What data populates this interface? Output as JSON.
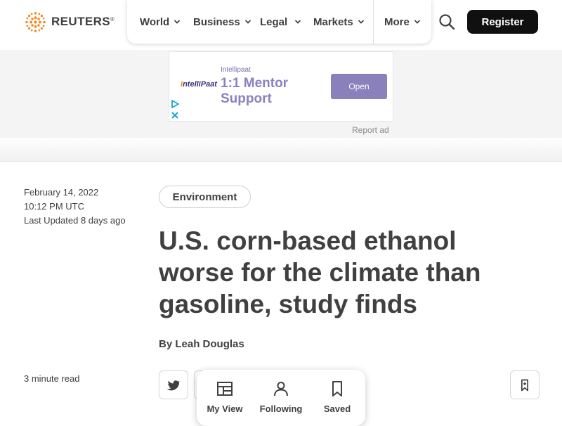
{
  "header": {
    "logo_text": "REUTERS",
    "logo_mark": "®",
    "nav": [
      {
        "label": "World",
        "icon": "chevron-down-icon"
      },
      {
        "label": "Business",
        "icon": "chevron-down-icon"
      },
      {
        "label": "Legal",
        "icon": "chevron-down-icon"
      },
      {
        "label": "Markets",
        "icon": "chevron-down-icon"
      },
      {
        "label": "More",
        "icon": "chevron-down-icon"
      }
    ],
    "search_icon": "search-icon",
    "register_label": "Register"
  },
  "ad": {
    "brand_logo": "IntelliPaat",
    "sponsor": "Intellipaat",
    "headline": "1:1 Mentor Support",
    "cta": "Open",
    "report_label": "Report ad"
  },
  "article": {
    "date": "February 14, 2022",
    "time": "10:12 PM UTC",
    "updated": "Last Updated 8 days ago",
    "tag": "Environment",
    "title": "U.S. corn-based ethanol worse for the climate than gasoline, study finds",
    "byline_prefix": "By",
    "author": "Leah Douglas",
    "read_time": "3 minute read"
  },
  "float_menu": [
    {
      "label": "My View",
      "icon": "layout-icon"
    },
    {
      "label": "Following",
      "icon": "person-icon"
    },
    {
      "label": "Saved",
      "icon": "bookmark-icon"
    }
  ],
  "colors": {
    "text": "#404040",
    "register_bg": "#101010",
    "logo_orange": "#f08a24",
    "ad_purple": "#8a80bb"
  }
}
